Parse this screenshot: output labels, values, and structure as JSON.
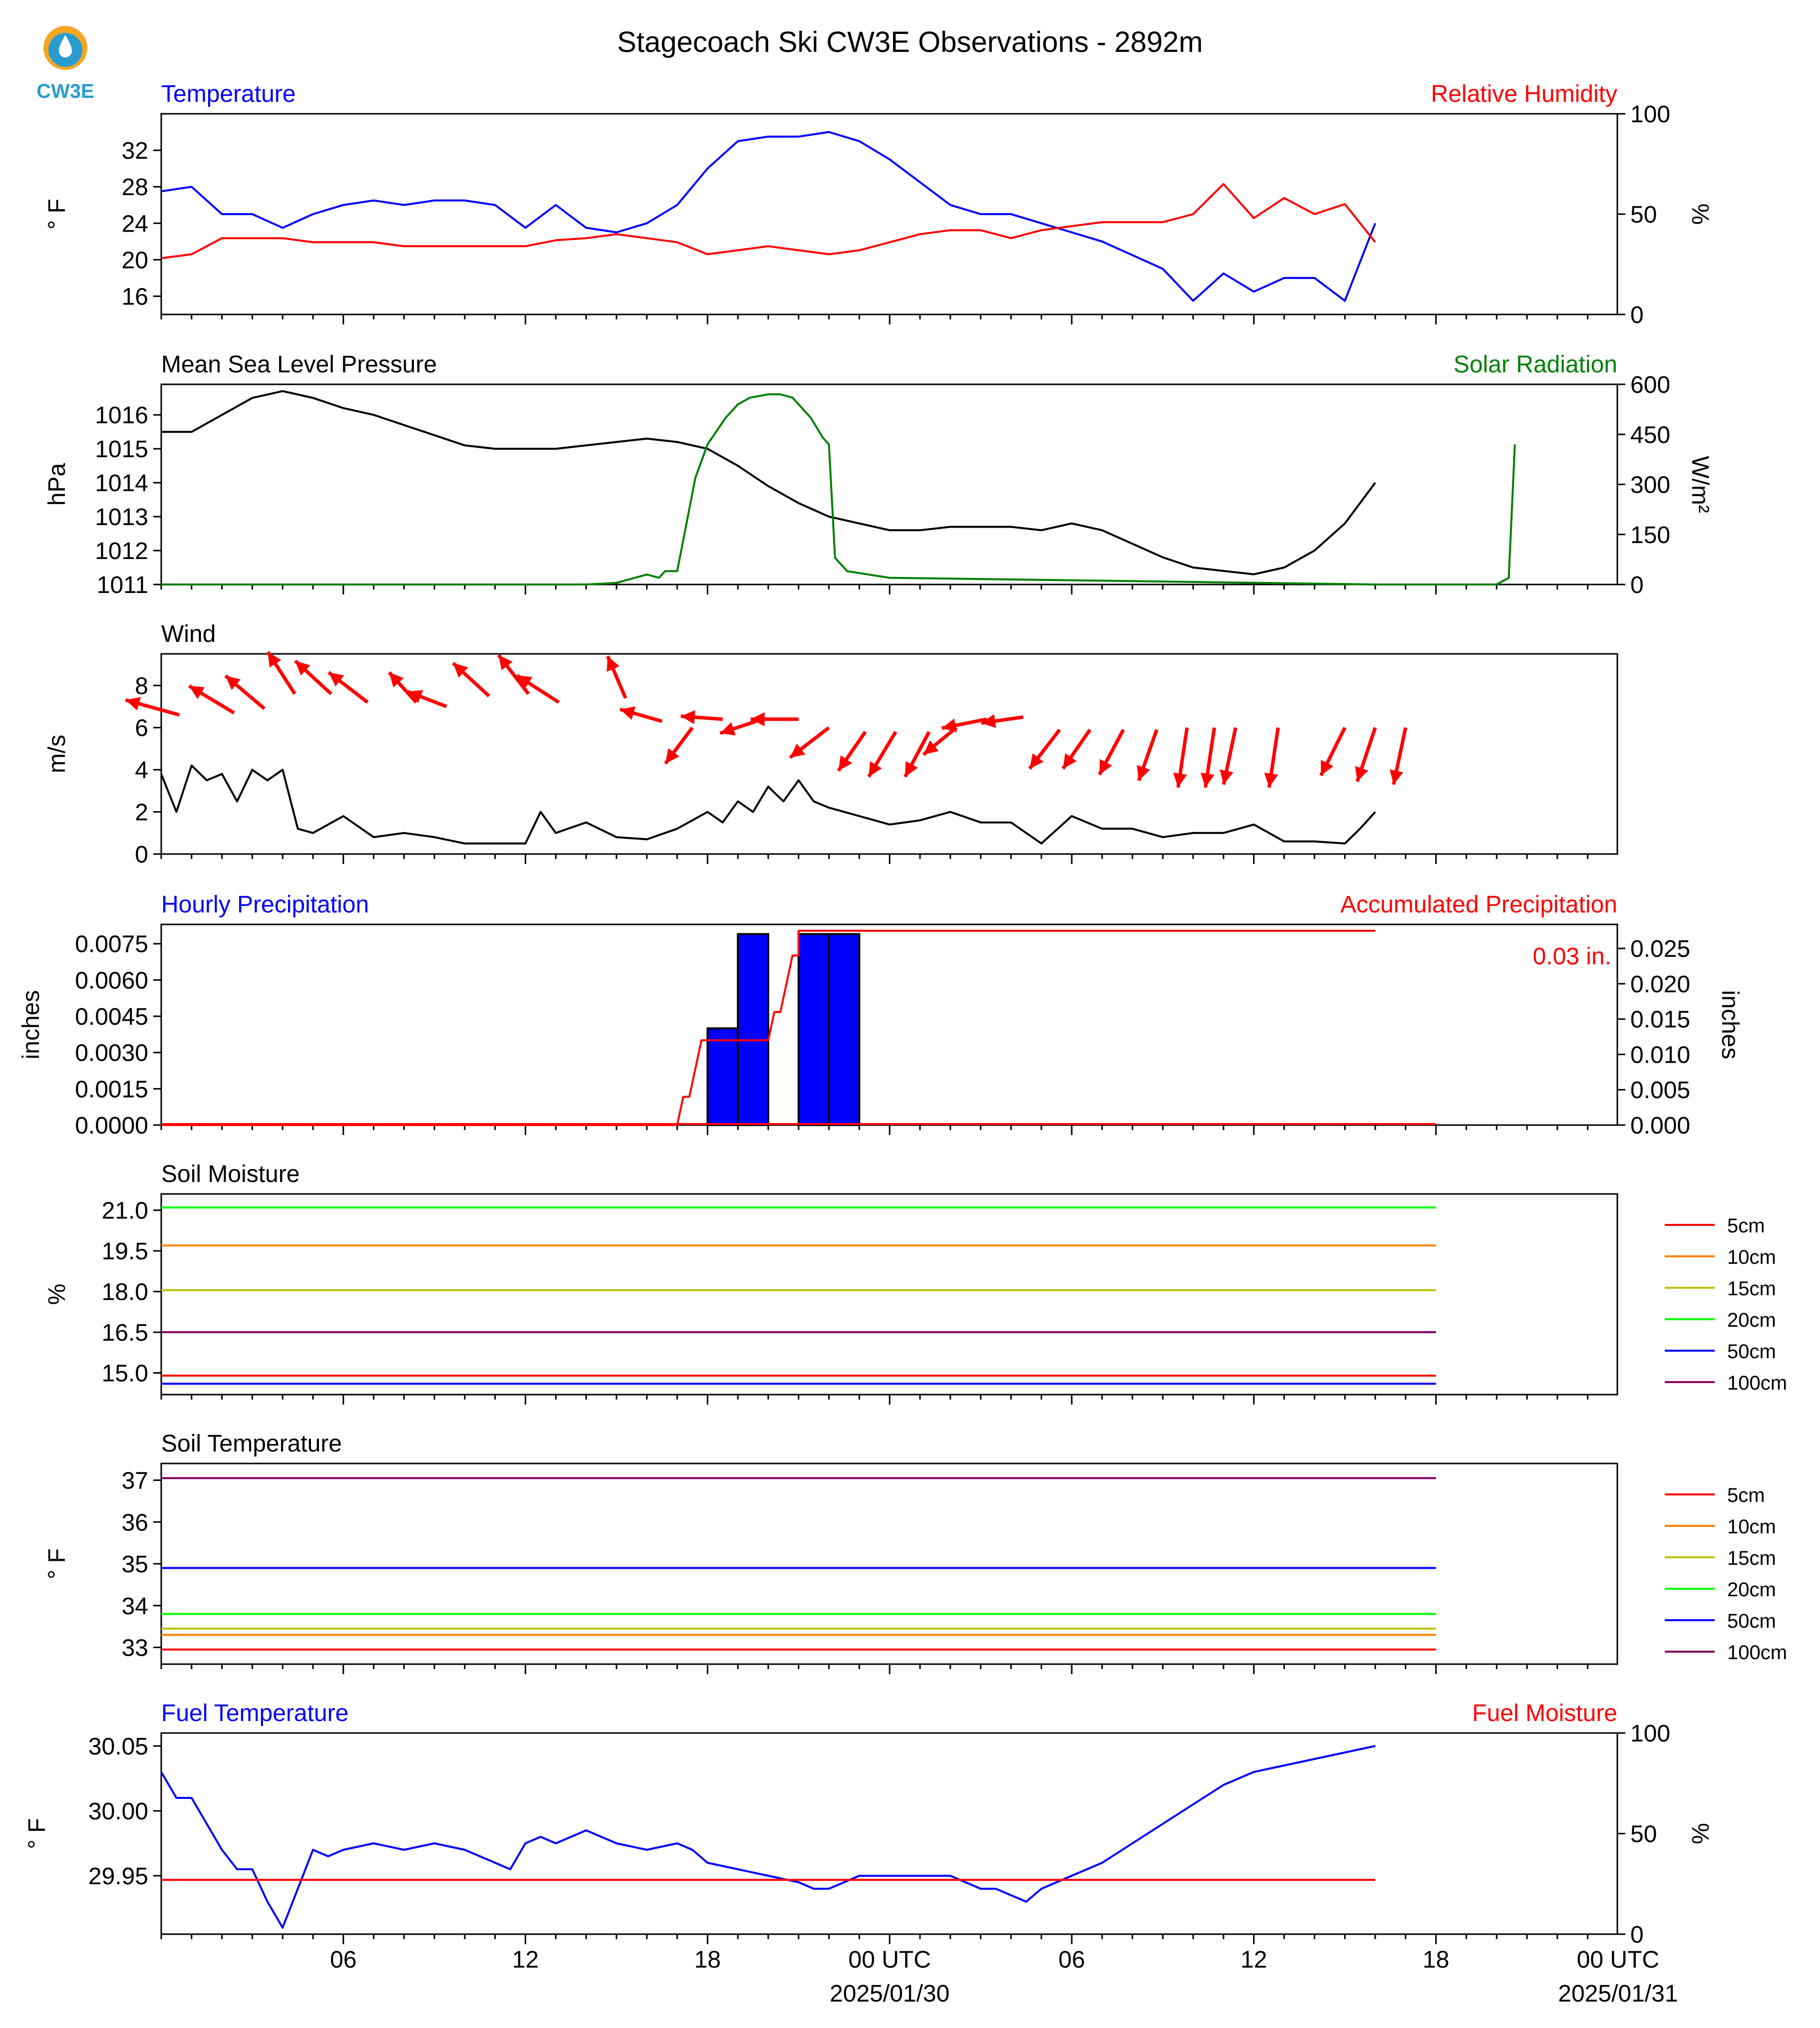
{
  "title": "Stagecoach Ski CW3E Observations - 2892m",
  "logo": {
    "text": "CW3E",
    "color": "#2a9bd1",
    "accent": "#f5a623"
  },
  "colors": {
    "blue": "#0000ff",
    "red": "#ff0000",
    "green": "#008000",
    "black": "#000000"
  },
  "chart_data": [
    {
      "type": "line",
      "left_title": "Temperature",
      "right_title": "Relative Humidity",
      "ylabel": "° F",
      "ylabel2": "%",
      "ylim": [
        14,
        36
      ],
      "yticks": [
        16,
        20,
        24,
        28,
        32
      ],
      "ylim2": [
        0,
        100
      ],
      "yticks2": [
        0,
        50,
        100
      ],
      "series": [
        {
          "axis": "left",
          "color": "#0000ff",
          "x": [
            0,
            1,
            2,
            3,
            4,
            5,
            6,
            7,
            8,
            9,
            10,
            11,
            12,
            13,
            14,
            15,
            16,
            17,
            18,
            19,
            20,
            21,
            22,
            23,
            24,
            25,
            26,
            27,
            28,
            29,
            30,
            31,
            32,
            33,
            34,
            35,
            36,
            37,
            38,
            39,
            40
          ],
          "y": [
            27.5,
            28,
            25,
            25,
            23.5,
            25,
            26,
            26.5,
            26,
            26.5,
            26.5,
            26,
            23.5,
            26,
            23.5,
            23,
            24,
            26,
            30,
            33,
            33.5,
            33.5,
            34,
            33,
            31,
            28.5,
            26,
            25,
            25,
            24,
            23,
            22,
            20.5,
            19,
            15.5,
            18.5,
            16.5,
            18,
            18,
            15.5,
            24
          ]
        },
        {
          "axis": "right",
          "color": "#ff0000",
          "x": [
            0,
            1,
            2,
            3,
            4,
            5,
            6,
            7,
            8,
            9,
            10,
            11,
            12,
            13,
            14,
            15,
            16,
            17,
            18,
            19,
            20,
            21,
            22,
            23,
            24,
            25,
            26,
            27,
            28,
            29,
            30,
            31,
            32,
            33,
            34,
            35,
            36,
            37,
            38,
            39,
            40
          ],
          "y": [
            28,
            30,
            38,
            38,
            38,
            36,
            36,
            36,
            34,
            34,
            34,
            34,
            34,
            37,
            38,
            40,
            38,
            36,
            30,
            32,
            34,
            32,
            30,
            32,
            36,
            40,
            42,
            42,
            38,
            42,
            44,
            46,
            46,
            46,
            50,
            65,
            48,
            58,
            50,
            55,
            36
          ]
        }
      ]
    },
    {
      "type": "line",
      "left_title": "Mean Sea Level Pressure",
      "right_title": "Solar Radiation",
      "ylabel": "hPa",
      "ylabel2": "W/m²",
      "ylim": [
        1011,
        1016.9
      ],
      "yticks": [
        1011,
        1012,
        1013,
        1014,
        1015,
        1016
      ],
      "ylim2": [
        0,
        600
      ],
      "yticks2": [
        0,
        150,
        300,
        450,
        600
      ],
      "series": [
        {
          "axis": "left",
          "color": "#000000",
          "x": [
            0,
            1,
            2,
            3,
            4,
            5,
            6,
            7,
            8,
            9,
            10,
            11,
            12,
            13,
            14,
            15,
            16,
            17,
            18,
            19,
            20,
            21,
            22,
            23,
            24,
            25,
            26,
            27,
            28,
            29,
            30,
            31,
            32,
            33,
            34,
            35,
            36,
            37,
            38,
            39,
            40
          ],
          "y": [
            1015.5,
            1015.5,
            1016,
            1016.5,
            1016.7,
            1016.5,
            1016.2,
            1016,
            1015.7,
            1015.4,
            1015.1,
            1015,
            1015,
            1015,
            1015.1,
            1015.2,
            1015.3,
            1015.2,
            1015,
            1014.5,
            1013.9,
            1013.4,
            1013,
            1012.8,
            1012.6,
            1012.6,
            1012.7,
            1012.7,
            1012.7,
            1012.6,
            1012.8,
            1012.6,
            1012.2,
            1011.8,
            1011.5,
            1011.4,
            1011.3,
            1011.5,
            1012,
            1012.8,
            1014
          ]
        },
        {
          "axis": "right",
          "color": "#008000",
          "x": [
            0,
            14,
            15,
            16,
            16.4,
            16.6,
            17,
            17.6,
            18,
            18.6,
            19,
            19.4,
            20,
            20.4,
            20.8,
            21,
            21.4,
            21.8,
            22,
            22.2,
            22.6,
            24,
            40,
            40.6,
            41,
            42,
            43,
            44,
            44.4,
            44.6
          ],
          "y": [
            0,
            0,
            5,
            30,
            20,
            40,
            40,
            320,
            420,
            500,
            540,
            560,
            570,
            570,
            560,
            540,
            500,
            440,
            420,
            80,
            40,
            20,
            0,
            0,
            0,
            0,
            0,
            0,
            20,
            420
          ]
        }
      ]
    },
    {
      "type": "line",
      "left_title": "Wind",
      "ylabel": "m/s",
      "ylim": [
        0,
        9.5
      ],
      "yticks": [
        0,
        2,
        4,
        6,
        8
      ],
      "series": [
        {
          "axis": "left",
          "color": "#000000",
          "x": [
            0,
            0.5,
            1,
            1.5,
            2,
            2.5,
            3,
            3.5,
            4,
            4.5,
            5,
            6,
            7,
            8,
            9,
            10,
            11,
            12,
            12.5,
            13,
            14,
            15,
            16,
            17,
            18,
            18.5,
            19,
            19.5,
            20,
            20.5,
            21,
            21.5,
            22,
            23,
            24,
            25,
            26,
            27,
            28,
            29,
            30,
            31,
            32,
            33,
            34,
            35,
            36,
            37,
            38,
            39,
            39.5,
            40
          ],
          "y": [
            3.8,
            2,
            4.2,
            3.5,
            3.8,
            2.5,
            4,
            3.5,
            4,
            1.2,
            1,
            1.8,
            0.8,
            1,
            0.8,
            0.5,
            0.5,
            0.5,
            2,
            1,
            1.5,
            0.8,
            0.7,
            1.2,
            2,
            1.5,
            2.5,
            2,
            3.2,
            2.5,
            3.5,
            2.5,
            2.2,
            1.8,
            1.4,
            1.6,
            2,
            1.5,
            1.5,
            0.5,
            1.8,
            1.2,
            1.2,
            0.8,
            1,
            1,
            1.4,
            0.6,
            0.6,
            0.5,
            1.2,
            2
          ]
        }
      ],
      "arrows": [
        {
          "x": 0.6,
          "y": 6.6,
          "u": -1.8,
          "v": 0.5
        },
        {
          "x": 2.4,
          "y": 6.7,
          "u": -1.5,
          "v": 0.9
        },
        {
          "x": 3.4,
          "y": 6.9,
          "u": -1.3,
          "v": 1.1
        },
        {
          "x": 4.4,
          "y": 7.6,
          "u": -0.9,
          "v": 1.4
        },
        {
          "x": 5.6,
          "y": 7.6,
          "u": -1.2,
          "v": 1.1
        },
        {
          "x": 6.8,
          "y": 7.2,
          "u": -1.3,
          "v": 1.0
        },
        {
          "x": 8.4,
          "y": 7.2,
          "u": -0.9,
          "v": 1.0
        },
        {
          "x": 9.4,
          "y": 7.0,
          "u": -1.3,
          "v": 0.5
        },
        {
          "x": 10.8,
          "y": 7.5,
          "u": -1.2,
          "v": 1.1
        },
        {
          "x": 12.1,
          "y": 7.6,
          "u": -1.0,
          "v": 1.3
        },
        {
          "x": 13.1,
          "y": 7.2,
          "u": -1.4,
          "v": 0.9
        },
        {
          "x": 15.3,
          "y": 7.4,
          "u": -0.6,
          "v": 1.4
        },
        {
          "x": 16.5,
          "y": 6.3,
          "u": -1.4,
          "v": 0.4
        },
        {
          "x": 17.5,
          "y": 6.0,
          "u": -0.9,
          "v": -1.2
        },
        {
          "x": 18.5,
          "y": 6.4,
          "u": -1.4,
          "v": 0.1
        },
        {
          "x": 19.6,
          "y": 6.3,
          "u": -1.2,
          "v": -0.4
        },
        {
          "x": 21.0,
          "y": 6.4,
          "u": -1.6,
          "v": 0.0
        },
        {
          "x": 22.0,
          "y": 6.0,
          "u": -1.3,
          "v": -1.0
        },
        {
          "x": 23.2,
          "y": 5.8,
          "u": -0.9,
          "v": -1.3
        },
        {
          "x": 24.2,
          "y": 5.8,
          "u": -0.9,
          "v": -1.5
        },
        {
          "x": 25.3,
          "y": 5.8,
          "u": -0.8,
          "v": -1.5
        },
        {
          "x": 26.2,
          "y": 6.0,
          "u": -1.1,
          "v": -0.9
        },
        {
          "x": 27.2,
          "y": 6.4,
          "u": -1.5,
          "v": -0.3
        },
        {
          "x": 28.4,
          "y": 6.5,
          "u": -1.4,
          "v": -0.2
        },
        {
          "x": 29.6,
          "y": 5.9,
          "u": -1.0,
          "v": -1.3
        },
        {
          "x": 30.6,
          "y": 5.9,
          "u": -0.9,
          "v": -1.3
        },
        {
          "x": 31.7,
          "y": 5.9,
          "u": -0.8,
          "v": -1.5
        },
        {
          "x": 32.8,
          "y": 5.9,
          "u": -0.6,
          "v": -1.7
        },
        {
          "x": 33.8,
          "y": 6.0,
          "u": -0.3,
          "v": -2.0
        },
        {
          "x": 34.7,
          "y": 6.0,
          "u": -0.3,
          "v": -2.0
        },
        {
          "x": 35.4,
          "y": 6.0,
          "u": -0.4,
          "v": -1.9
        },
        {
          "x": 36.8,
          "y": 6.0,
          "u": -0.3,
          "v": -2.0
        },
        {
          "x": 39.0,
          "y": 6.0,
          "u": -0.8,
          "v": -1.6
        },
        {
          "x": 40.0,
          "y": 6.0,
          "u": -0.6,
          "v": -1.8
        },
        {
          "x": 41.0,
          "y": 6.0,
          "u": -0.4,
          "v": -1.9
        }
      ]
    },
    {
      "type": "bar",
      "left_title": "Hourly Precipitation",
      "right_title": "Accumulated Precipitation",
      "ylabel": "inches",
      "ylabel2": "inches",
      "ylim": [
        0,
        0.0083
      ],
      "yticks": [
        "0.0000",
        "0.0015",
        "0.0030",
        "0.0045",
        "0.0060",
        "0.0075"
      ],
      "ylim2": [
        0,
        0.0284
      ],
      "yticks2": [
        "0.000",
        "0.005",
        "0.010",
        "0.015",
        "0.020",
        "0.025"
      ],
      "annotation": "0.03 in.",
      "bars": [
        {
          "x": 16,
          "height": 0.004
        },
        {
          "x": 17,
          "height": 0.0079
        },
        {
          "x": 19,
          "height": 0.0079
        },
        {
          "x": 20,
          "height": 0.0079
        }
      ],
      "series": [
        {
          "axis": "right",
          "color": "#ff0000",
          "x": [
            0,
            17,
            17.2,
            17.4,
            17.6,
            17.8,
            18,
            20,
            20.2,
            20.4,
            20.6,
            20.8,
            21,
            21,
            40
          ],
          "y": [
            0,
            0,
            0.004,
            0.004,
            0.008,
            0.012,
            0.012,
            0.012,
            0.016,
            0.016,
            0.02,
            0.024,
            0.024,
            0.0275,
            0.0275
          ]
        }
      ]
    },
    {
      "type": "line",
      "left_title": "Soil Moisture",
      "ylabel": "%",
      "ylim": [
        14.2,
        21.6
      ],
      "yticks": [
        "15.0",
        "16.5",
        "18.0",
        "19.5",
        "21.0"
      ],
      "legend": [
        "5cm",
        "10cm",
        "15cm",
        "20cm",
        "50cm",
        "100cm"
      ],
      "legend_colors": [
        "#ff0000",
        "#ff8000",
        "#c0c000",
        "#00ff00",
        "#0000ff",
        "#800060"
      ],
      "series": [
        {
          "name": "5cm",
          "color": "#ff0000",
          "level": 14.9
        },
        {
          "name": "10cm",
          "color": "#ff8000",
          "level": 19.7
        },
        {
          "name": "15cm",
          "color": "#c0c000",
          "level": 18.05
        },
        {
          "name": "20cm",
          "color": "#00ff00",
          "level": 21.1
        },
        {
          "name": "50cm",
          "color": "#0000ff",
          "level": 14.6
        },
        {
          "name": "100cm",
          "color": "#800060",
          "level": 16.5
        }
      ]
    },
    {
      "type": "line",
      "left_title": "Soil Temperature",
      "ylabel": "° F",
      "ylim": [
        32.6,
        37.4
      ],
      "yticks": [
        33,
        34,
        35,
        36,
        37
      ],
      "legend": [
        "5cm",
        "10cm",
        "15cm",
        "20cm",
        "50cm",
        "100cm"
      ],
      "legend_colors": [
        "#ff0000",
        "#ff8000",
        "#c0c000",
        "#00ff00",
        "#0000ff",
        "#800060"
      ],
      "series": [
        {
          "name": "5cm",
          "color": "#ff0000",
          "level": 32.95
        },
        {
          "name": "10cm",
          "color": "#ff8000",
          "level": 33.3
        },
        {
          "name": "15cm",
          "color": "#c0c000",
          "level": 33.45
        },
        {
          "name": "20cm",
          "color": "#00ff00",
          "level": 33.8
        },
        {
          "name": "50cm",
          "color": "#0000ff",
          "level": 34.9
        },
        {
          "name": "100cm",
          "color": "#800060",
          "level": 37.05
        }
      ]
    },
    {
      "type": "line",
      "left_title": "Fuel Temperature",
      "right_title": "Fuel Moisture",
      "ylabel": "° F",
      "ylabel2": "%",
      "ylim": [
        29.905,
        30.06
      ],
      "yticks": [
        "29.95",
        "30.00",
        "30.05"
      ],
      "ylim2": [
        0,
        100
      ],
      "yticks2": [
        0,
        50,
        100
      ],
      "series": [
        {
          "axis": "left",
          "color": "#0000ff",
          "x": [
            0,
            0.5,
            1,
            1.5,
            2,
            2.5,
            3,
            3.5,
            4,
            4.5,
            5,
            5.5,
            6,
            7,
            8,
            9,
            10,
            11,
            11.5,
            12,
            12.5,
            13,
            14,
            15,
            16,
            17,
            17.5,
            18,
            19,
            20,
            21,
            21.5,
            22,
            23,
            24,
            25,
            26,
            27,
            27.5,
            28,
            28.5,
            29,
            30,
            30.5,
            31,
            32,
            33,
            34,
            35,
            36,
            37,
            38,
            39,
            40
          ],
          "y": [
            30.03,
            30.01,
            30.01,
            29.99,
            29.97,
            29.955,
            29.955,
            29.93,
            29.91,
            29.94,
            29.97,
            29.965,
            29.97,
            29.975,
            29.97,
            29.975,
            29.97,
            29.96,
            29.955,
            29.975,
            29.98,
            29.975,
            29.985,
            29.975,
            29.97,
            29.975,
            29.97,
            29.96,
            29.955,
            29.95,
            29.945,
            29.94,
            29.94,
            29.95,
            29.95,
            29.95,
            29.95,
            29.94,
            29.94,
            29.935,
            29.93,
            29.94,
            29.95,
            29.955,
            29.96,
            29.975,
            29.99,
            30.005,
            30.02,
            30.03,
            30.035,
            30.04,
            30.045,
            30.05
          ]
        },
        {
          "axis": "right",
          "color": "#ff0000",
          "x": [
            0,
            40
          ],
          "y": [
            27,
            27
          ]
        }
      ]
    }
  ],
  "xaxis": {
    "tick_labels": [
      "06",
      "12",
      "18",
      "00 UTC",
      "06",
      "12",
      "18",
      "00 UTC"
    ],
    "date_labels": [
      "2025/01/30",
      "2025/01/31"
    ]
  }
}
